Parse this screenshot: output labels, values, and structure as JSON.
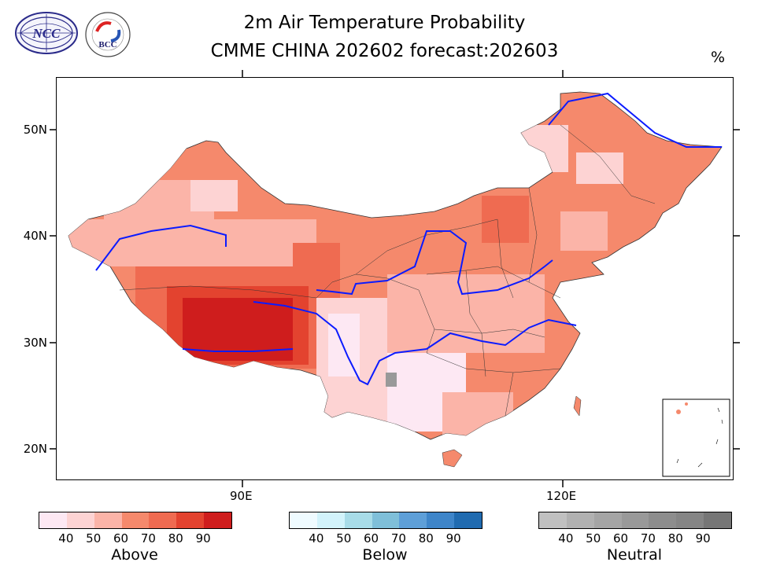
{
  "header": {
    "title_line1": "2m Air Temperature Probability",
    "title_line2": "CMME CHINA 202602 forecast:202603",
    "unit": "%"
  },
  "logos": {
    "left_text": "NCC",
    "right_text": "BCC"
  },
  "axes": {
    "lat_labels": [
      "50N",
      "40N",
      "30N",
      "20N"
    ],
    "lon_labels": [
      "90E",
      "120E"
    ]
  },
  "legend": {
    "above": {
      "name": "Above",
      "ticks": [
        "40",
        "50",
        "60",
        "70",
        "80",
        "90"
      ],
      "colors": [
        "#fde8f3",
        "#fdd3d3",
        "#fbb4a8",
        "#f5896c",
        "#ef6b51",
        "#e3432f",
        "#cf1d1d"
      ]
    },
    "below": {
      "name": "Below",
      "ticks": [
        "40",
        "50",
        "60",
        "70",
        "80",
        "90"
      ],
      "colors": [
        "#effbff",
        "#d2f3fb",
        "#a8dce8",
        "#7fbfd9",
        "#5e9fd8",
        "#3e85c9",
        "#206bb0"
      ]
    },
    "neutral": {
      "name": "Neutral",
      "ticks": [
        "40",
        "50",
        "60",
        "70",
        "80",
        "90"
      ],
      "colors": [
        "#c0c0c0",
        "#b1b1b1",
        "#a5a5a5",
        "#999999",
        "#8d8d8d",
        "#858585",
        "#767676"
      ]
    }
  }
}
